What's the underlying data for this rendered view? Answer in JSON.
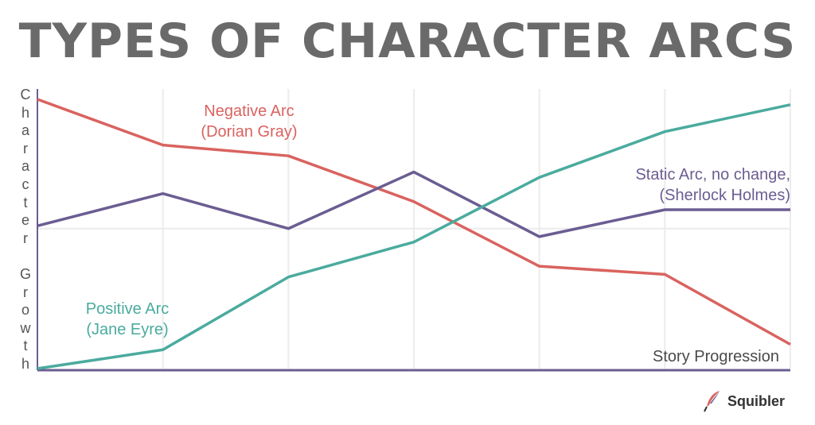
{
  "title": "TYPES OF CHARACTER ARCS",
  "brand": {
    "name": "Squibler",
    "icon": "feather-pen-icon"
  },
  "chart_data": {
    "type": "line",
    "xlabel": "Story Progression",
    "ylabel": "Character Growth",
    "x": [
      0,
      1,
      2,
      3,
      4,
      5,
      6
    ],
    "xlim": [
      0,
      6
    ],
    "ylim": [
      0,
      100
    ],
    "grid": true,
    "series": [
      {
        "name": "Negative Arc",
        "name_line2": "(Dorian Gray)",
        "color": "#d9635f",
        "values": [
          100,
          83,
          79,
          62,
          38,
          35,
          9
        ]
      },
      {
        "name": "Static Arc, no change,",
        "name_line2": "(Sherlock Holmes)",
        "color": "#6b5d92",
        "values": [
          53,
          65,
          52,
          73,
          49,
          59,
          59
        ]
      },
      {
        "name": "Positive Arc",
        "name_line2": "(Jane Eyre)",
        "color": "#4aab9e",
        "values": [
          0,
          7,
          34,
          47,
          71,
          88,
          98
        ]
      }
    ]
  }
}
